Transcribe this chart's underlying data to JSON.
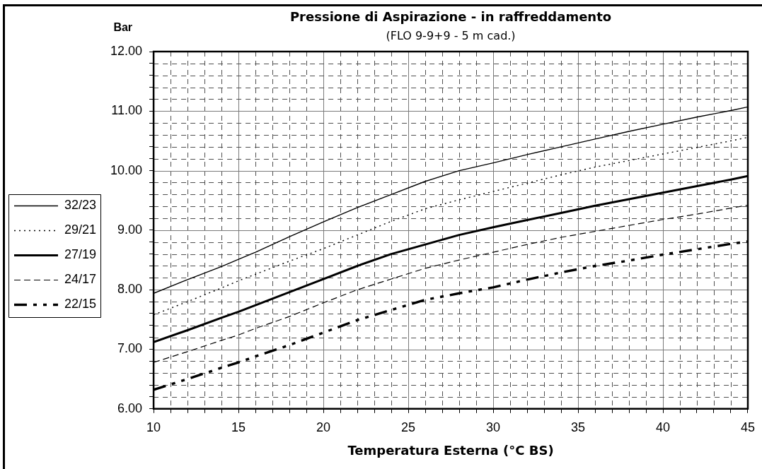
{
  "chart_data": {
    "type": "line",
    "title": "Pressione di Aspirazione - in raffreddamento",
    "subtitle": "(FLO 9-9+9 - 5 m cad.)",
    "xlabel": "Temperatura Esterna (°C BS)",
    "ylabel": "Bar",
    "x": [
      10,
      12,
      14,
      15,
      16,
      18,
      20,
      22,
      24,
      26,
      28,
      30,
      32,
      34,
      36,
      38,
      40,
      42,
      44,
      45
    ],
    "series": [
      {
        "name": "32/23",
        "color": "#000000",
        "line_style": "solid",
        "values": [
          7.94,
          8.17,
          8.39,
          8.51,
          8.63,
          8.89,
          9.14,
          9.38,
          9.6,
          9.82,
          10.0,
          10.13,
          10.27,
          10.4,
          10.53,
          10.66,
          10.78,
          10.9,
          11.01,
          11.07
        ]
      },
      {
        "name": "29/21",
        "color": "#000000",
        "line_style": "dotted",
        "values": [
          7.58,
          7.8,
          8.03,
          8.15,
          8.26,
          8.48,
          8.69,
          8.92,
          9.15,
          9.36,
          9.51,
          9.65,
          9.79,
          9.93,
          10.06,
          10.17,
          10.28,
          10.39,
          10.5,
          10.56
        ]
      },
      {
        "name": "27/19",
        "color": "#000000",
        "line_style": "solid",
        "values": [
          7.12,
          7.32,
          7.53,
          7.63,
          7.74,
          7.96,
          8.18,
          8.4,
          8.6,
          8.76,
          8.92,
          9.05,
          9.17,
          9.29,
          9.41,
          9.52,
          9.63,
          9.74,
          9.85,
          9.91
        ]
      },
      {
        "name": "24/17",
        "color": "#000000",
        "line_style": "dashed",
        "values": [
          6.78,
          6.96,
          7.15,
          7.24,
          7.35,
          7.55,
          7.78,
          8.0,
          8.18,
          8.36,
          8.5,
          8.63,
          8.76,
          8.88,
          8.98,
          9.08,
          9.18,
          9.27,
          9.37,
          9.42
        ]
      },
      {
        "name": "22/15",
        "color": "#000000",
        "line_style": "dashed",
        "values": [
          6.32,
          6.5,
          6.69,
          6.78,
          6.88,
          7.07,
          7.28,
          7.49,
          7.66,
          7.83,
          7.94,
          8.04,
          8.17,
          8.29,
          8.4,
          8.49,
          8.59,
          8.68,
          8.77,
          8.81
        ]
      }
    ],
    "xlim": [
      10,
      45
    ],
    "ylim": [
      6,
      12
    ],
    "xticks": [
      10,
      {
        "value": 11,
        "label": null
      },
      {
        "value": 12,
        "label": null
      },
      {
        "value": 13,
        "label": null
      },
      {
        "value": 14,
        "label": null
      },
      15,
      {
        "value": 16,
        "label": null
      },
      {
        "value": 17,
        "label": null
      },
      {
        "value": 18,
        "label": null
      },
      {
        "value": 19,
        "label": null
      },
      20,
      {
        "value": 21,
        "label": null
      },
      {
        "value": 22,
        "label": null
      },
      {
        "value": 23,
        "label": null
      },
      {
        "value": 24,
        "label": null
      },
      25,
      {
        "value": 26,
        "label": null
      },
      {
        "value": 27,
        "label": null
      },
      {
        "value": 28,
        "label": null
      },
      {
        "value": 29,
        "label": null
      },
      30,
      {
        "value": 31,
        "label": null
      },
      {
        "value": 32,
        "label": null
      },
      {
        "value": 33,
        "label": null
      },
      {
        "value": 34,
        "label": null
      },
      35,
      {
        "value": 36,
        "label": null
      },
      {
        "value": 37,
        "label": null
      },
      {
        "value": 38,
        "label": null
      },
      {
        "value": 39,
        "label": null
      },
      40,
      {
        "value": 41,
        "label": null
      },
      {
        "value": 42,
        "label": null
      },
      {
        "value": 43,
        "label": null
      },
      {
        "value": 44,
        "label": null
      },
      45
    ],
    "yticks": [
      {
        "value": 6,
        "label": "6.00"
      },
      {
        "value": 6.2,
        "label": null
      },
      {
        "value": 6.4,
        "label": null
      },
      {
        "value": 6.6,
        "label": null
      },
      {
        "value": 6.8,
        "label": null
      },
      {
        "value": 7,
        "label": "7.00"
      },
      {
        "value": 7.2,
        "label": null
      },
      {
        "value": 7.4,
        "label": null
      },
      {
        "value": 7.6,
        "label": null
      },
      {
        "value": 7.8,
        "label": null
      },
      {
        "value": 8,
        "label": "8.00"
      },
      {
        "value": 8.2,
        "label": null
      },
      {
        "value": 8.4,
        "label": null
      },
      {
        "value": 8.6,
        "label": null
      },
      {
        "value": 8.8,
        "label": null
      },
      {
        "value": 9,
        "label": "9.00"
      },
      {
        "value": 9.2,
        "label": null
      },
      {
        "value": 9.4,
        "label": null
      },
      {
        "value": 9.6,
        "label": null
      },
      {
        "value": 9.8,
        "label": null
      },
      {
        "value": 10,
        "label": "10.00"
      },
      {
        "value": 10.2,
        "label": null
      },
      {
        "value": 10.4,
        "label": null
      },
      {
        "value": 10.6,
        "label": null
      },
      {
        "value": 10.8,
        "label": null
      },
      {
        "value": 11,
        "label": "11.00"
      },
      {
        "value": 11.2,
        "label": null
      },
      {
        "value": 11.4,
        "label": null
      },
      {
        "value": 11.6,
        "label": null
      },
      {
        "value": 11.8,
        "label": null
      },
      {
        "value": 12,
        "label": "12.00"
      }
    ],
    "grid": true,
    "legend": "left"
  }
}
